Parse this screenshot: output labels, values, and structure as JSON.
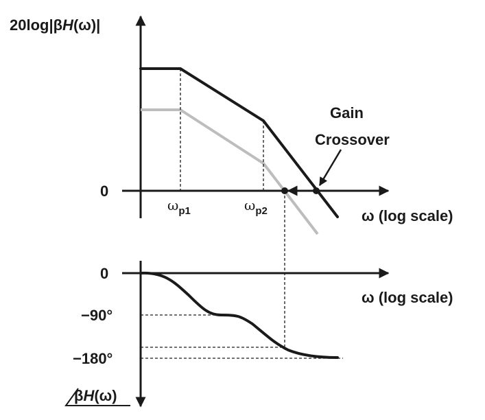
{
  "magnitude_plot": {
    "y_label_prefix": "20log|β",
    "y_label_H": "H",
    "y_label_suffix": "(ω)|",
    "zero_label": "0",
    "x_axis_label": "ω (log scale)",
    "pole1": {
      "symbol": "ω",
      "sub": "p1"
    },
    "pole2": {
      "symbol": "ω",
      "sub": "p2"
    },
    "annotation": {
      "line1": "Gain",
      "line2": "Crossover"
    }
  },
  "phase_plot": {
    "zero_label": "0",
    "minus90_label": "−90°",
    "minus180_label": "−180°",
    "x_axis_label": "ω (log scale)",
    "y_label_prefix": "β",
    "y_label_H": "H",
    "y_label_suffix": "(ω)"
  }
}
